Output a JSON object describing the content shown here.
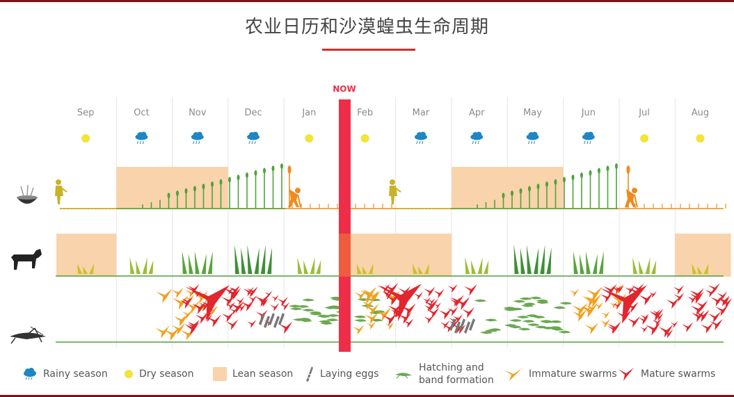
{
  "title": "农业日历和沙漠蝗虫生命周期",
  "now_label": "NOW",
  "months": [
    {
      "label": "Sep",
      "season": "dry",
      "lean_crop": false,
      "pasture": 1,
      "lean_pasture": true
    },
    {
      "label": "Oct",
      "season": "rainy",
      "lean_crop": true,
      "pasture": 2,
      "lean_pasture": false
    },
    {
      "label": "Nov",
      "season": "rainy",
      "lean_crop": true,
      "pasture": 3,
      "lean_pasture": false
    },
    {
      "label": "Dec",
      "season": "rainy",
      "lean_crop": false,
      "pasture": 4,
      "lean_pasture": false
    },
    {
      "label": "Jan",
      "season": "dry",
      "lean_crop": false,
      "pasture": 2,
      "lean_pasture": false
    },
    {
      "label": "Feb",
      "season": "dry",
      "lean_crop": false,
      "pasture": 1,
      "lean_pasture": true
    },
    {
      "label": "Mar",
      "season": "rainy",
      "lean_crop": false,
      "pasture": 1,
      "lean_pasture": true
    },
    {
      "label": "Apr",
      "season": "rainy",
      "lean_crop": true,
      "pasture": 2,
      "lean_pasture": false
    },
    {
      "label": "May",
      "season": "rainy",
      "lean_crop": true,
      "pasture": 4,
      "lean_pasture": false
    },
    {
      "label": "Jun",
      "season": "rainy",
      "lean_crop": false,
      "pasture": 3,
      "lean_pasture": false
    },
    {
      "label": "Jul",
      "season": "dry",
      "lean_crop": false,
      "pasture": 2,
      "lean_pasture": false
    },
    {
      "label": "Aug",
      "season": "dry",
      "lean_crop": false,
      "pasture": 1,
      "lean_pasture": true
    }
  ],
  "colors": {
    "rainy": "#1f86c4",
    "dry": "#f1e43a",
    "lean": "#f9d3ab",
    "crop": "#4fa23a",
    "seed": "#c7b22a",
    "harvest": "#ef8b1d",
    "hatch": "#6aa84f",
    "immature": "#f2a11f",
    "mature": "#e1262d",
    "now": "#ee2e48",
    "eggs": "#777777"
  },
  "legend": [
    {
      "icon": "rainy-cloud-icon",
      "label": "Rainy season"
    },
    {
      "icon": "sun-dot-icon",
      "label": "Dry season"
    },
    {
      "icon": "lean-swatch-icon",
      "label": "Lean season"
    },
    {
      "icon": "egg-laying-icon",
      "label": "Laying eggs"
    },
    {
      "icon": "hopper-icon",
      "label": "Hatching and band formation"
    },
    {
      "icon": "immature-locust-icon",
      "label": "Immature swarms"
    },
    {
      "icon": "mature-locust-icon",
      "label": "Mature swarms"
    }
  ]
}
